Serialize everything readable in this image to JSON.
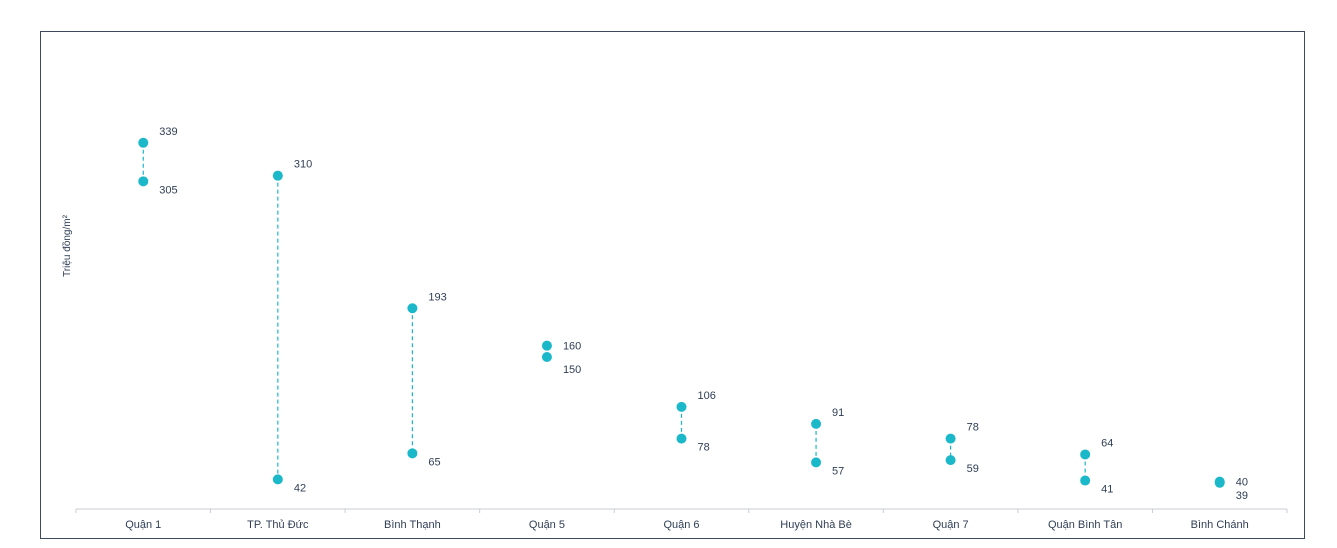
{
  "chart_data": {
    "type": "dumbbell",
    "ylabel": "Triệu đồng/m²",
    "xlabel": "",
    "title": "",
    "categories": [
      "Quận 1",
      "TP. Thủ Đức",
      "Bình Thạnh",
      "Quận 5",
      "Quận 6",
      "Huyện Nhà Bè",
      "Quận 7",
      "Quận Bình Tân",
      "Bình Chánh"
    ],
    "series": [
      {
        "values": [
          339,
          310,
          193,
          160,
          106,
          91,
          78,
          64,
          40
        ]
      },
      {
        "values": [
          305,
          42,
          65,
          150,
          78,
          57,
          59,
          41,
          39
        ]
      }
    ],
    "ylim": [
      0,
      400
    ],
    "grid": false,
    "colors": {
      "dot": "#1bb8c9",
      "connector": "#1bb8c9",
      "axis": "#c9ced6",
      "text": "#2f3e55"
    }
  }
}
